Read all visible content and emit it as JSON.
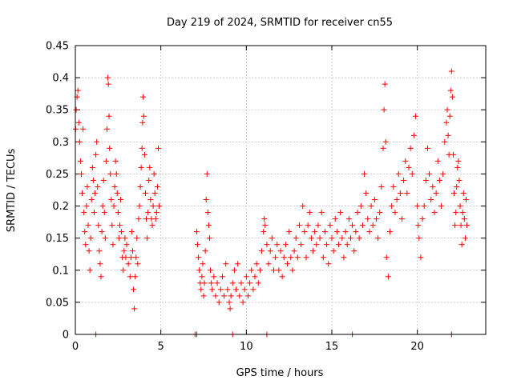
{
  "chart_data": {
    "type": "scatter",
    "title": "Day 219 of 2024, SRMTID for receiver cn55",
    "xlabel": "GPS time / hours",
    "ylabel": "SRMTID / TECUs",
    "xlim": [
      0,
      24
    ],
    "ylim": [
      0,
      0.45
    ],
    "x_ticks": [
      0,
      5,
      10,
      15,
      20
    ],
    "x_tick_labels": [
      "0",
      "5",
      "10",
      "15",
      "20"
    ],
    "y_ticks": [
      0,
      0.05,
      0.1,
      0.15,
      0.2,
      0.25,
      0.3,
      0.35,
      0.4,
      0.45
    ],
    "y_tick_labels": [
      "0",
      "0.05",
      "0.1",
      "0.15",
      "0.2",
      "0.25",
      "0.3",
      "0.35",
      "0.4",
      "0.45"
    ],
    "grid": true,
    "marker": "plus",
    "color": "#ff0000",
    "series": [
      {
        "name": "SRMTID",
        "points": [
          [
            0.02,
            0.32
          ],
          [
            0.05,
            0.35
          ],
          [
            0.1,
            0.37
          ],
          [
            0.15,
            0.38
          ],
          [
            0.2,
            0.33
          ],
          [
            0.25,
            0.3
          ],
          [
            0.3,
            0.27
          ],
          [
            0.35,
            0.25
          ],
          [
            0.4,
            0.22
          ],
          [
            0.45,
            0.32
          ],
          [
            0.5,
            0.19
          ],
          [
            0.55,
            0.16
          ],
          [
            0.6,
            0.14
          ],
          [
            0.65,
            0.2
          ],
          [
            0.7,
            0.23
          ],
          [
            0.75,
            0.17
          ],
          [
            0.8,
            0.13
          ],
          [
            0.85,
            0.1
          ],
          [
            0.9,
            0.15
          ],
          [
            0.95,
            0.21
          ],
          [
            1.0,
            0.26
          ],
          [
            1.05,
            0.24
          ],
          [
            1.1,
            0.19
          ],
          [
            1.15,
            0.22
          ],
          [
            1.2,
            0.28
          ],
          [
            1.25,
            0.3
          ],
          [
            1.3,
            0.23
          ],
          [
            1.35,
            0.17
          ],
          [
            1.4,
            0.13
          ],
          [
            1.45,
            0.11
          ],
          [
            1.5,
            0.09
          ],
          [
            1.55,
            0.16
          ],
          [
            1.6,
            0.2
          ],
          [
            1.65,
            0.24
          ],
          [
            1.7,
            0.19
          ],
          [
            1.75,
            0.15
          ],
          [
            1.8,
            0.27
          ],
          [
            1.85,
            0.32
          ],
          [
            1.9,
            0.4
          ],
          [
            1.93,
            0.39
          ],
          [
            1.97,
            0.34
          ],
          [
            2.0,
            0.29
          ],
          [
            2.05,
            0.25
          ],
          [
            2.1,
            0.21
          ],
          [
            2.15,
            0.17
          ],
          [
            2.2,
            0.14
          ],
          [
            2.25,
            0.2
          ],
          [
            2.3,
            0.23
          ],
          [
            2.35,
            0.27
          ],
          [
            2.4,
            0.25
          ],
          [
            2.45,
            0.22
          ],
          [
            2.5,
            0.19
          ],
          [
            2.55,
            0.15
          ],
          [
            2.6,
            0.17
          ],
          [
            2.65,
            0.21
          ],
          [
            2.7,
            0.16
          ],
          [
            2.75,
            0.12
          ],
          [
            2.8,
            0.1
          ],
          [
            2.85,
            0.13
          ],
          [
            2.9,
            0.15
          ],
          [
            2.95,
            0.12
          ],
          [
            3.0,
            0.14
          ],
          [
            3.1,
            0.11
          ],
          [
            3.2,
            0.09
          ],
          [
            3.25,
            0.12
          ],
          [
            3.3,
            0.16
          ],
          [
            3.35,
            0.13
          ],
          [
            3.4,
            0.07
          ],
          [
            3.45,
            0.04
          ],
          [
            3.5,
            0.09
          ],
          [
            3.55,
            0.12
          ],
          [
            3.6,
            0.15
          ],
          [
            3.65,
            0.11
          ],
          [
            3.7,
            0.18
          ],
          [
            3.75,
            0.2
          ],
          [
            3.8,
            0.23
          ],
          [
            3.85,
            0.26
          ],
          [
            3.9,
            0.29
          ],
          [
            3.93,
            0.33
          ],
          [
            3.96,
            0.37
          ],
          [
            4.0,
            0.34
          ],
          [
            4.05,
            0.28
          ],
          [
            4.1,
            0.22
          ],
          [
            4.15,
            0.18
          ],
          [
            4.2,
            0.15
          ],
          [
            4.25,
            0.19
          ],
          [
            4.3,
            0.24
          ],
          [
            4.35,
            0.26
          ],
          [
            4.4,
            0.21
          ],
          [
            4.45,
            0.18
          ],
          [
            4.5,
            0.17
          ],
          [
            4.55,
            0.2
          ],
          [
            4.6,
            0.25
          ],
          [
            4.65,
            0.22
          ],
          [
            4.7,
            0.18
          ],
          [
            4.75,
            0.19
          ],
          [
            4.8,
            0.23
          ],
          [
            4.85,
            0.29
          ],
          [
            4.9,
            0.2
          ],
          [
            7.1,
            0.16
          ],
          [
            7.15,
            0.14
          ],
          [
            7.2,
            0.12
          ],
          [
            7.25,
            0.1
          ],
          [
            7.3,
            0.08
          ],
          [
            7.35,
            0.07
          ],
          [
            7.4,
            0.09
          ],
          [
            7.45,
            0.11
          ],
          [
            7.5,
            0.06
          ],
          [
            7.55,
            0.08
          ],
          [
            7.6,
            0.13
          ],
          [
            7.65,
            0.21
          ],
          [
            7.7,
            0.25
          ],
          [
            7.75,
            0.19
          ],
          [
            7.8,
            0.17
          ],
          [
            7.85,
            0.15
          ],
          [
            7.9,
            0.1
          ],
          [
            7.95,
            0.08
          ],
          [
            8.0,
            0.07
          ],
          [
            8.1,
            0.09
          ],
          [
            8.2,
            0.06
          ],
          [
            8.3,
            0.08
          ],
          [
            8.4,
            0.05
          ],
          [
            8.5,
            0.07
          ],
          [
            8.6,
            0.09
          ],
          [
            8.7,
            0.06
          ],
          [
            8.8,
            0.11
          ],
          [
            8.9,
            0.07
          ],
          [
            9.0,
            0.05
          ],
          [
            9.05,
            0.04
          ],
          [
            9.1,
            0.06
          ],
          [
            9.2,
            0.08
          ],
          [
            9.3,
            0.1
          ],
          [
            9.4,
            0.07
          ],
          [
            9.5,
            0.11
          ],
          [
            9.6,
            0.06
          ],
          [
            9.7,
            0.08
          ],
          [
            9.8,
            0.05
          ],
          [
            9.9,
            0.07
          ],
          [
            10.0,
            0.09
          ],
          [
            10.1,
            0.06
          ],
          [
            10.2,
            0.08
          ],
          [
            10.3,
            0.1
          ],
          [
            10.4,
            0.07
          ],
          [
            10.5,
            0.09
          ],
          [
            10.6,
            0.11
          ],
          [
            10.7,
            0.08
          ],
          [
            10.8,
            0.1
          ],
          [
            10.9,
            0.13
          ],
          [
            11.0,
            0.16
          ],
          [
            11.05,
            0.18
          ],
          [
            11.1,
            0.17
          ],
          [
            11.2,
            0.14
          ],
          [
            11.3,
            0.11
          ],
          [
            11.4,
            0.13
          ],
          [
            11.5,
            0.15
          ],
          [
            11.6,
            0.1
          ],
          [
            11.7,
            0.12
          ],
          [
            11.8,
            0.14
          ],
          [
            11.9,
            0.1
          ],
          [
            12.0,
            0.13
          ],
          [
            12.1,
            0.09
          ],
          [
            12.2,
            0.12
          ],
          [
            12.3,
            0.14
          ],
          [
            12.4,
            0.11
          ],
          [
            12.5,
            0.16
          ],
          [
            12.6,
            0.12
          ],
          [
            12.7,
            0.1
          ],
          [
            12.8,
            0.13
          ],
          [
            12.9,
            0.15
          ],
          [
            13.0,
            0.12
          ],
          [
            13.1,
            0.17
          ],
          [
            13.2,
            0.14
          ],
          [
            13.3,
            0.2
          ],
          [
            13.4,
            0.16
          ],
          [
            13.5,
            0.12
          ],
          [
            13.6,
            0.17
          ],
          [
            13.7,
            0.19
          ],
          [
            13.8,
            0.15
          ],
          [
            13.9,
            0.13
          ],
          [
            14.0,
            0.16
          ],
          [
            14.1,
            0.14
          ],
          [
            14.2,
            0.17
          ],
          [
            14.3,
            0.15
          ],
          [
            14.4,
            0.19
          ],
          [
            14.5,
            0.12
          ],
          [
            14.6,
            0.16
          ],
          [
            14.7,
            0.14
          ],
          [
            14.8,
            0.11
          ],
          [
            14.9,
            0.17
          ],
          [
            15.0,
            0.15
          ],
          [
            15.1,
            0.13
          ],
          [
            15.2,
            0.18
          ],
          [
            15.3,
            0.16
          ],
          [
            15.4,
            0.14
          ],
          [
            15.5,
            0.19
          ],
          [
            15.6,
            0.15
          ],
          [
            15.7,
            0.12
          ],
          [
            15.8,
            0.16
          ],
          [
            15.9,
            0.14
          ],
          [
            16.0,
            0.18
          ],
          [
            16.1,
            0.15
          ],
          [
            16.2,
            0.17
          ],
          [
            16.3,
            0.13
          ],
          [
            16.4,
            0.16
          ],
          [
            16.5,
            0.19
          ],
          [
            16.6,
            0.15
          ],
          [
            16.7,
            0.2
          ],
          [
            16.8,
            0.17
          ],
          [
            16.9,
            0.25
          ],
          [
            17.0,
            0.22
          ],
          [
            17.1,
            0.18
          ],
          [
            17.2,
            0.16
          ],
          [
            17.3,
            0.2
          ],
          [
            17.4,
            0.17
          ],
          [
            17.5,
            0.21
          ],
          [
            17.6,
            0.18
          ],
          [
            17.7,
            0.15
          ],
          [
            17.8,
            0.19
          ],
          [
            17.9,
            0.23
          ],
          [
            18.0,
            0.29
          ],
          [
            18.05,
            0.35
          ],
          [
            18.1,
            0.39
          ],
          [
            18.15,
            0.3
          ],
          [
            18.2,
            0.12
          ],
          [
            18.3,
            0.09
          ],
          [
            18.4,
            0.16
          ],
          [
            18.5,
            0.2
          ],
          [
            18.6,
            0.23
          ],
          [
            18.7,
            0.19
          ],
          [
            18.8,
            0.21
          ],
          [
            18.9,
            0.25
          ],
          [
            19.0,
            0.22
          ],
          [
            19.1,
            0.18
          ],
          [
            19.2,
            0.24
          ],
          [
            19.3,
            0.27
          ],
          [
            19.4,
            0.22
          ],
          [
            19.5,
            0.26
          ],
          [
            19.6,
            0.29
          ],
          [
            19.7,
            0.25
          ],
          [
            19.8,
            0.31
          ],
          [
            19.9,
            0.34
          ],
          [
            20.0,
            0.2
          ],
          [
            20.05,
            0.17
          ],
          [
            20.1,
            0.15
          ],
          [
            20.2,
            0.12
          ],
          [
            20.3,
            0.18
          ],
          [
            20.4,
            0.2
          ],
          [
            20.5,
            0.24
          ],
          [
            20.6,
            0.29
          ],
          [
            20.7,
            0.25
          ],
          [
            20.8,
            0.21
          ],
          [
            20.9,
            0.23
          ],
          [
            21.0,
            0.19
          ],
          [
            21.1,
            0.22
          ],
          [
            21.2,
            0.27
          ],
          [
            21.3,
            0.24
          ],
          [
            21.4,
            0.2
          ],
          [
            21.5,
            0.25
          ],
          [
            21.6,
            0.3
          ],
          [
            21.7,
            0.33
          ],
          [
            21.75,
            0.35
          ],
          [
            21.8,
            0.31
          ],
          [
            21.85,
            0.28
          ],
          [
            21.9,
            0.34
          ],
          [
            21.95,
            0.38
          ],
          [
            22.0,
            0.41
          ],
          [
            22.05,
            0.37
          ],
          [
            22.1,
            0.28
          ],
          [
            22.15,
            0.22
          ],
          [
            22.2,
            0.17
          ],
          [
            22.25,
            0.19
          ],
          [
            22.3,
            0.23
          ],
          [
            22.35,
            0.26
          ],
          [
            22.4,
            0.27
          ],
          [
            22.45,
            0.24
          ],
          [
            22.5,
            0.2
          ],
          [
            22.55,
            0.17
          ],
          [
            22.6,
            0.14
          ],
          [
            22.65,
            0.19
          ],
          [
            22.7,
            0.22
          ],
          [
            22.75,
            0.18
          ],
          [
            22.8,
            0.15
          ],
          [
            22.85,
            0.21
          ],
          [
            22.9,
            0.17
          ],
          [
            1.2,
            0.0
          ],
          [
            7.0,
            0.0
          ],
          [
            7.1,
            0.0
          ],
          [
            9.2,
            0.0
          ],
          [
            11.2,
            0.0
          ],
          [
            16.2,
            0.0
          ],
          [
            22.0,
            0.0
          ]
        ]
      }
    ]
  }
}
